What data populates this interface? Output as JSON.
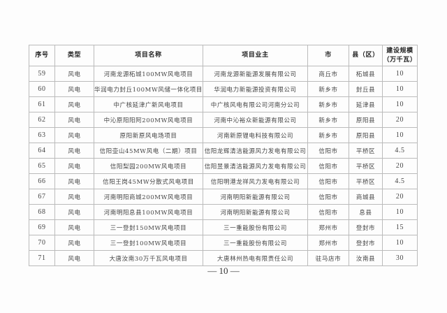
{
  "table": {
    "headers": [
      "序号",
      "类型",
      "项目名称",
      "项目业主",
      "市",
      "县（区）",
      "建设规模（万千瓦）"
    ],
    "header_scale_line1": "建设规模",
    "header_scale_line2": "（万千瓦）",
    "rows": [
      [
        "59",
        "风电",
        "河南龙源柘城100MW风电项目",
        "河南龙源新能源发展有限公司",
        "商丘市",
        "柘城县",
        "10"
      ],
      [
        "60",
        "风电",
        "华润电力封丘100MW风储一体化项目",
        "华润电力新能源投资有限公司",
        "新乡市",
        "封丘县",
        "10"
      ],
      [
        "61",
        "风电",
        "中广核延津广新风电项目",
        "中广核风电有限公司河南分公司",
        "新乡市",
        "延津县",
        "10"
      ],
      [
        "62",
        "风电",
        "中沁原阳阳阿200MW风电项目",
        "河南中沁裕众新能源有限公司",
        "新乡市",
        "原阳县",
        "20"
      ],
      [
        "63",
        "风电",
        "原阳新原风电场项目",
        "河南新原锂电科技有限公司",
        "新乡市",
        "原阳县",
        "10"
      ],
      [
        "64",
        "风电",
        "信阳壶山45MW风电（二期）项目",
        "信阳龙辉清洁能源风力发电有限公司",
        "信阳市",
        "平桥区",
        "4.5"
      ],
      [
        "65",
        "风电",
        "信阳梨园200MW风电项目",
        "信阳昱景清洁能源风力发电有限公司",
        "信阳市",
        "平桥区",
        "20"
      ],
      [
        "66",
        "风电",
        "信阳王岗45MW分散式风电项目",
        "信阳明港龙祥风力发电有限公司",
        "信阳市",
        "平桥区",
        "4.5"
      ],
      [
        "67",
        "风电",
        "河南明阳商城200MW风电项目",
        "河南明阳新能源有限公司",
        "信阳市",
        "商城县",
        "20"
      ],
      [
        "68",
        "风电",
        "河南明阳息县100MW风电项目",
        "河南明阳新能源有限公司",
        "信阳市",
        "息县",
        "10"
      ],
      [
        "69",
        "风电",
        "三一登封150MW风电项目",
        "三一重能股份有限公司",
        "郑州市",
        "登封市",
        "15"
      ],
      [
        "70",
        "风电",
        "三一登封100MW风电项目",
        "三一重能股份有限公司",
        "郑州市",
        "登封市",
        "10"
      ],
      [
        "71",
        "风电",
        "大唐汝南30万千瓦风电项目",
        "大唐林州热电有限责任公司",
        "驻马店市",
        "汝南县",
        "30"
      ]
    ]
  },
  "page_number": "— 10 —"
}
